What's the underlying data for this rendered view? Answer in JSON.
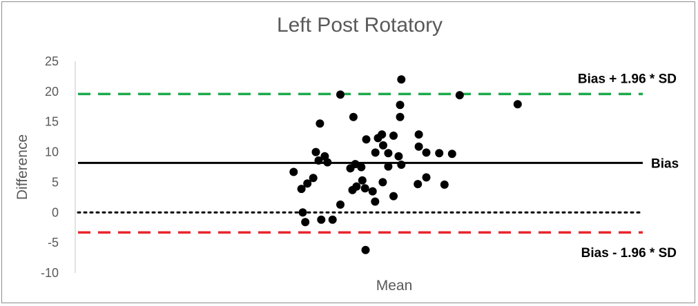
{
  "chart_data": {
    "type": "scatter",
    "title": "Left Post Rotatory",
    "xlabel": "Mean",
    "ylabel": "Difference",
    "ylim": [
      -10,
      25
    ],
    "y_ticks": [
      "25",
      "20",
      "15",
      "10",
      "5",
      "0",
      "-5",
      "-10"
    ],
    "x_axis_labels_shown": false,
    "grid": false,
    "x_range": [
      0,
      50
    ],
    "reference_lines": [
      {
        "label": "Bias + 1.96 * SD",
        "value": 19.6,
        "style": "dashed",
        "color": "#1aaa4a"
      },
      {
        "label": "Bias",
        "value": 8.2,
        "style": "solid",
        "color": "#000000"
      },
      {
        "label": "",
        "value": 0,
        "style": "dotted",
        "color": "#000000"
      },
      {
        "label": "Bias - 1.96 * SD",
        "value": -3.3,
        "style": "dashed",
        "color": "#e8262d"
      }
    ],
    "points": [
      {
        "x": 19.24,
        "y": 6.7
      },
      {
        "x": 19.93,
        "y": 3.9
      },
      {
        "x": 20.04,
        "y": 0.0
      },
      {
        "x": 20.27,
        "y": -1.6
      },
      {
        "x": 20.45,
        "y": 4.8
      },
      {
        "x": 20.97,
        "y": 5.7
      },
      {
        "x": 21.2,
        "y": 10.0
      },
      {
        "x": 21.44,
        "y": 8.6
      },
      {
        "x": 21.56,
        "y": 14.7
      },
      {
        "x": 21.67,
        "y": -1.2
      },
      {
        "x": 21.98,
        "y": 9.3
      },
      {
        "x": 22.22,
        "y": 8.3
      },
      {
        "x": 22.67,
        "y": -1.2
      },
      {
        "x": 23.36,
        "y": 1.3
      },
      {
        "x": 23.36,
        "y": 19.5
      },
      {
        "x": 24.24,
        "y": 7.3
      },
      {
        "x": 24.42,
        "y": 3.7
      },
      {
        "x": 24.51,
        "y": 15.8
      },
      {
        "x": 24.67,
        "y": 8.0
      },
      {
        "x": 24.78,
        "y": 4.3
      },
      {
        "x": 25.2,
        "y": 7.5
      },
      {
        "x": 25.29,
        "y": 5.3
      },
      {
        "x": 25.53,
        "y": 4.0
      },
      {
        "x": 25.58,
        "y": -6.2
      },
      {
        "x": 25.64,
        "y": 12.1
      },
      {
        "x": 26.2,
        "y": 3.5
      },
      {
        "x": 26.42,
        "y": 1.8
      },
      {
        "x": 26.44,
        "y": 9.9
      },
      {
        "x": 26.67,
        "y": 12.3
      },
      {
        "x": 27.02,
        "y": 12.9
      },
      {
        "x": 27.09,
        "y": 5.0
      },
      {
        "x": 27.13,
        "y": 11.1
      },
      {
        "x": 27.58,
        "y": 7.6
      },
      {
        "x": 27.58,
        "y": 9.8
      },
      {
        "x": 28.04,
        "y": 2.7
      },
      {
        "x": 28.04,
        "y": 12.7
      },
      {
        "x": 28.49,
        "y": 9.3
      },
      {
        "x": 28.62,
        "y": 15.8
      },
      {
        "x": 28.62,
        "y": 17.8
      },
      {
        "x": 28.73,
        "y": 22.0
      },
      {
        "x": 28.73,
        "y": 7.9
      },
      {
        "x": 30.18,
        "y": 4.7
      },
      {
        "x": 30.27,
        "y": 10.9
      },
      {
        "x": 30.27,
        "y": 12.9
      },
      {
        "x": 30.93,
        "y": 5.8
      },
      {
        "x": 30.93,
        "y": 9.9
      },
      {
        "x": 32.07,
        "y": 9.8
      },
      {
        "x": 32.53,
        "y": 4.6
      },
      {
        "x": 33.2,
        "y": 9.7
      },
      {
        "x": 33.87,
        "y": 19.4
      },
      {
        "x": 38.98,
        "y": 17.9
      }
    ]
  }
}
